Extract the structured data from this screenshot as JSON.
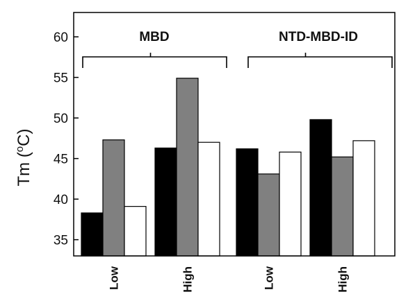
{
  "chart_data": {
    "type": "bar",
    "ylabel": "Tm (°C)",
    "ylabel_parts": [
      "Tm (",
      "o",
      "C)"
    ],
    "ylim": [
      33,
      63
    ],
    "yticks": [
      35,
      40,
      45,
      50,
      55,
      60
    ],
    "groups": [
      "MBD",
      "NTD-MBD-ID"
    ],
    "categories": [
      "Low",
      "High",
      "Low",
      "High"
    ],
    "series_colors": [
      "#000000",
      "#808080",
      "#ffffff"
    ],
    "values": [
      [
        38.3,
        47.3,
        39.1
      ],
      [
        46.3,
        54.9,
        47.0
      ],
      [
        46.2,
        43.1,
        45.8
      ],
      [
        49.8,
        45.2,
        47.2
      ]
    ],
    "grid": false,
    "legend": "none"
  }
}
